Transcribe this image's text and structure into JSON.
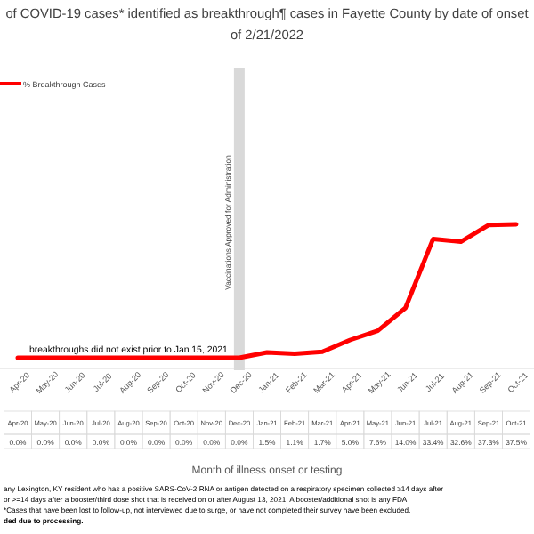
{
  "chart_data": {
    "type": "line",
    "title": "of COVID-19 cases* identified as breakthrough¶ cases in Fayette County by date of onset",
    "subtitle": "of 2/21/2022",
    "categories": [
      "Apr-20",
      "May-20",
      "Jun-20",
      "Jul-20",
      "Aug-20",
      "Sep-20",
      "Oct-20",
      "Nov-20",
      "Dec-20",
      "Jan-21",
      "Feb-21",
      "Mar-21",
      "Apr-21",
      "May-21",
      "Jun-21",
      "Jul-21",
      "Aug-21",
      "Sep-21",
      "Oct-21"
    ],
    "series": [
      {
        "name": "% Breakthrough Cases",
        "color": "#ff0000",
        "values": [
          0,
          0,
          0,
          0,
          0,
          0,
          0,
          0,
          0,
          1.5,
          1.1,
          1.7,
          5.0,
          7.6,
          14.0,
          33.4,
          32.6,
          37.3,
          37.5
        ],
        "value_labels": [
          "0.0%",
          "0.0%",
          "0.0%",
          "0.0%",
          "0.0%",
          "0.0%",
          "0.0%",
          "0.0%",
          "0.0%",
          "1.5%",
          "1.1%",
          "1.7%",
          "5.0%",
          "7.6%",
          "14.0%",
          "33.4%",
          "32.6%",
          "37.3%",
          "37.5%"
        ]
      }
    ],
    "tick_labels": "x",
    "legend": "top left",
    "ref_lines": [
      {
        "axis": "x",
        "value": "Dec-20",
        "label": "Vaccinations Approved for Administration",
        "color": "#d9d9d9"
      }
    ],
    "annotations": [
      {
        "text": "breakthroughs did not exist prior to Jan 15, 2021",
        "x": "Aug-20",
        "y": 0
      },
      "Month of illness onset or testing",
      "any Lexington, KY resident who has a positive SARS-CoV-2 RNA or antigen detected on a respiratory specimen collected ≥14 days after",
      "or >=14 days after a booster/third dose shot that is received on or after August 13, 2021.  A booster/additional shot is any FDA",
      "*Cases that have been lost to follow-up, not interviewed due to surge, or have not completed their survey have been excluded.",
      "ded due to processing."
    ]
  }
}
